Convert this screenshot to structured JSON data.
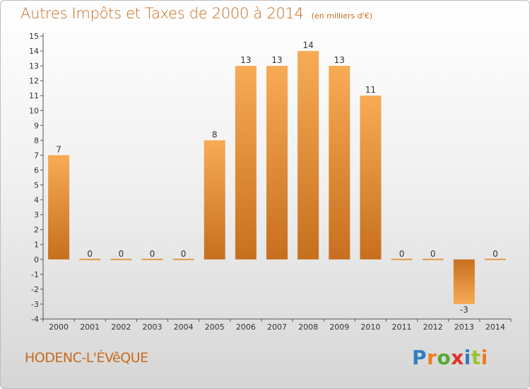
{
  "title": "Autres Impôts et Taxes de 2000 à 2014",
  "subtitle": "(en milliers d'€)",
  "location": "HODENC-L'ÉVêQUE",
  "brand": {
    "letters": [
      "P",
      "r",
      "o",
      "x",
      "i",
      "t",
      "i"
    ],
    "colors": [
      "#2f7ec2",
      "#f07d1a",
      "#59a832",
      "#e2312b",
      "#2f7ec2",
      "#9cc32f",
      "#f07d1a"
    ]
  },
  "colors": {
    "bar_light": "#f7a64e",
    "bar_dark": "#c9711f",
    "title": "#c86a1d"
  },
  "chart_data": {
    "type": "bar",
    "categories": [
      "2000",
      "2001",
      "2002",
      "2003",
      "2004",
      "2005",
      "2006",
      "2007",
      "2008",
      "2009",
      "2010",
      "2011",
      "2012",
      "2013",
      "2014"
    ],
    "values": [
      7,
      0,
      0,
      0,
      0,
      8,
      13,
      13,
      14,
      13,
      11,
      0,
      0,
      -3,
      0
    ],
    "ylim": [
      -4,
      15
    ],
    "yticks": [
      -4,
      -3,
      -2,
      -1,
      0,
      1,
      2,
      3,
      4,
      5,
      6,
      7,
      8,
      9,
      10,
      11,
      12,
      13,
      14,
      15
    ],
    "ytick_labels": [
      "-4",
      "-3",
      "-2",
      "-1",
      "0",
      "1",
      "2",
      "3",
      "4",
      "5",
      "6",
      "7",
      "8",
      "9",
      "10",
      "11",
      "12",
      "13",
      "14",
      "15"
    ],
    "data_labels": [
      "7",
      "0",
      "0",
      "0",
      "0",
      "8",
      "13",
      "13",
      "14",
      "13",
      "11",
      "0",
      "0",
      "-3",
      "0"
    ],
    "grid": false,
    "legend": "none"
  }
}
